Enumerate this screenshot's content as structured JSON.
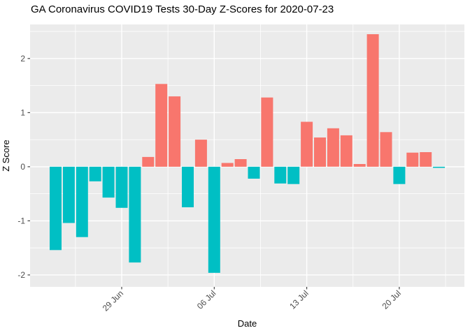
{
  "chart_data": {
    "type": "bar",
    "title": "GA Coronavirus COVID19 Tests 30-Day Z-Scores for 2020-07-23",
    "xlabel": "Date",
    "ylabel": "Z Score",
    "x": [
      "2020-06-24",
      "2020-06-25",
      "2020-06-26",
      "2020-06-27",
      "2020-06-28",
      "2020-06-29",
      "2020-06-30",
      "2020-07-01",
      "2020-07-02",
      "2020-07-03",
      "2020-07-04",
      "2020-07-05",
      "2020-07-06",
      "2020-07-07",
      "2020-07-08",
      "2020-07-09",
      "2020-07-10",
      "2020-07-11",
      "2020-07-12",
      "2020-07-13",
      "2020-07-14",
      "2020-07-15",
      "2020-07-16",
      "2020-07-17",
      "2020-07-18",
      "2020-07-19",
      "2020-07-20",
      "2020-07-21",
      "2020-07-22",
      "2020-07-23"
    ],
    "values": [
      -1.54,
      -1.04,
      -1.3,
      -0.27,
      -0.57,
      -0.76,
      -1.77,
      0.18,
      1.53,
      1.3,
      -0.75,
      0.5,
      -1.96,
      0.07,
      0.14,
      -0.22,
      1.28,
      -0.31,
      -0.32,
      0.83,
      0.54,
      0.71,
      0.58,
      0.05,
      2.45,
      0.64,
      -0.32,
      0.26,
      0.27,
      -0.02
    ],
    "x_ticks": [
      {
        "index": 5,
        "label": "29 Jun"
      },
      {
        "index": 12,
        "label": "06 Jul"
      },
      {
        "index": 19,
        "label": "13 Jul"
      },
      {
        "index": 26,
        "label": "20 Jul"
      }
    ],
    "y_ticks": [
      -2,
      -1,
      0,
      1,
      2
    ],
    "y_minor_ticks": [
      -1.5,
      -0.5,
      0.5,
      1.5,
      2.5
    ],
    "x_minor_indices": [
      1.5,
      8.5,
      15.5,
      22.5,
      29.5
    ],
    "ylim": [
      -2.22,
      2.63
    ],
    "legend_position": "none",
    "grid": true,
    "colors": {
      "positive_bar": "#F8766D",
      "negative_bar": "#00BFC4",
      "panel_background": "#EBEBEB",
      "gridline": "#FFFFFF",
      "tick_mark": "#333333",
      "tick_label": "#4D4D4D",
      "text": "#000000"
    }
  }
}
